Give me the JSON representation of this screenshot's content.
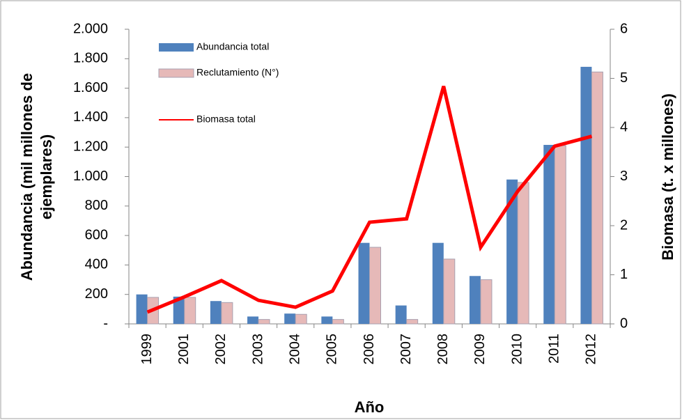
{
  "chart_data": {
    "type": "bar-line",
    "ylabel": [
      "Abundancia (mil millones de",
      "ejemplares)"
    ],
    "y2label": "Biomasa (t. x millones)",
    "xlabel": "Año",
    "categories": [
      "1999",
      "2001",
      "2002",
      "2003",
      "2004",
      "2005",
      "2006",
      "2007",
      "2008",
      "2009",
      "2010",
      "2011",
      "2012"
    ],
    "series": [
      {
        "name": "Abundancia  total",
        "type": "bar",
        "color": "#4f81bd",
        "values": [
          200,
          185,
          155,
          50,
          70,
          50,
          550,
          125,
          550,
          325,
          980,
          1215,
          1745
        ]
      },
      {
        "name": "Reclutamiento (N°)",
        "type": "bar",
        "color": "#e6b9b8",
        "values": [
          180,
          180,
          145,
          30,
          65,
          30,
          520,
          30,
          440,
          300,
          960,
          1210,
          1710
        ]
      },
      {
        "name": "Biomasa total",
        "type": "line",
        "axis": "y2",
        "color": "#ff0000",
        "values": [
          0.24,
          0.55,
          0.88,
          0.48,
          0.34,
          0.67,
          2.07,
          2.14,
          4.84,
          1.56,
          2.7,
          3.62,
          3.82
        ]
      }
    ],
    "ylim": [
      0,
      2000
    ],
    "yticks": [
      {
        "value": 0,
        "label": "-"
      },
      200,
      400,
      600,
      800,
      {
        "value": 1000,
        "label": "1.000"
      },
      {
        "value": 1200,
        "label": "1.200"
      },
      {
        "value": 1400,
        "label": "1.400"
      },
      {
        "value": 1600,
        "label": "1.600"
      },
      {
        "value": 1800,
        "label": "1.800"
      },
      {
        "value": 2000,
        "label": "2.000"
      }
    ],
    "y2lim": [
      0,
      6
    ],
    "y2ticks": [
      0,
      1,
      2,
      3,
      4,
      5,
      6
    ],
    "grid": false,
    "legend": "upper-left"
  }
}
